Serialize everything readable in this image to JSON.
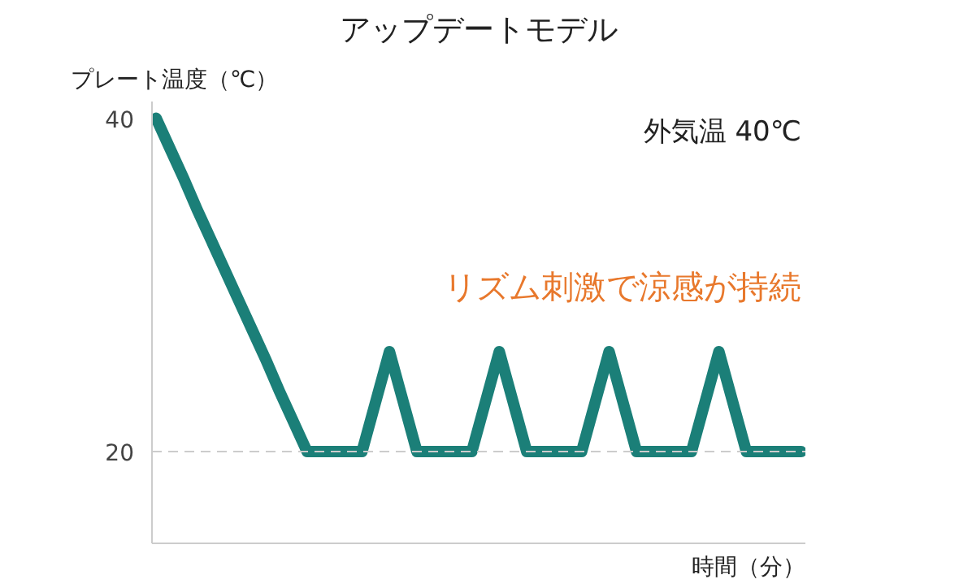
{
  "chart_data": {
    "type": "line",
    "title": "アップデートモデル",
    "ylabel": "プレート温度（℃）",
    "xlabel": "時間（分）",
    "annotations": [
      "外気温 40℃",
      "リズム刺激で涼感が持続"
    ],
    "categories": [
      null,
      null,
      null,
      null,
      null,
      null,
      null,
      null,
      null,
      null,
      null,
      null,
      null,
      null,
      null,
      null,
      null,
      null,
      null,
      null,
      null,
      null,
      null,
      null,
      null,
      null,
      null,
      null,
      null,
      null,
      null,
      null,
      null,
      null,
      null,
      null,
      null,
      null,
      null,
      null,
      null,
      null,
      null,
      null,
      null,
      null,
      null,
      null
    ],
    "values": [
      40,
      38.2,
      36.4,
      34.5,
      32.7,
      30.9,
      29.1,
      27.3,
      25.5,
      23.6,
      21.8,
      20,
      20,
      20,
      20,
      20,
      23,
      26,
      23,
      20,
      20,
      20,
      20,
      20,
      23,
      26,
      23,
      20,
      20,
      20,
      20,
      20,
      23,
      26,
      23,
      20,
      20,
      20,
      20,
      20,
      23,
      26,
      23,
      20,
      20,
      20,
      20,
      20
    ],
    "color": "#1b7f78",
    "ylim": [
      14.5,
      41
    ],
    "yticks": [
      20,
      40
    ],
    "ref_lines": [
      {
        "axis": "y",
        "value": 20,
        "color": "#cccccc",
        "line_style": "dashed"
      }
    ],
    "tick_labels": "y",
    "grid": false,
    "marker": "none",
    "line_style": "solid"
  }
}
